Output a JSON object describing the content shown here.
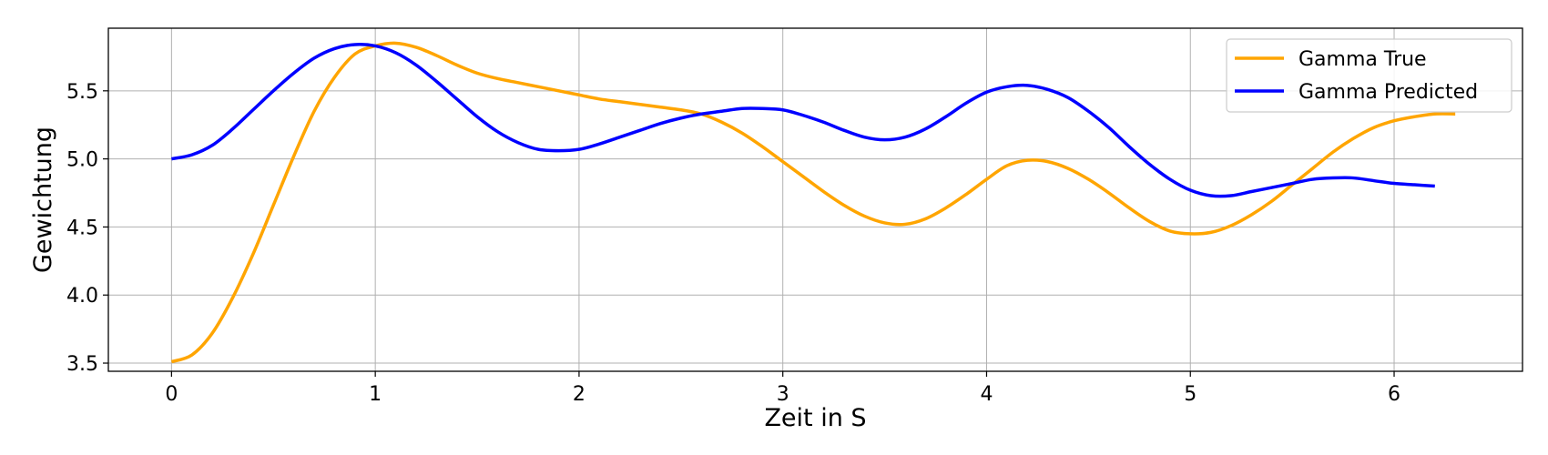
{
  "chart_data": {
    "type": "line",
    "title": "",
    "xlabel": "Zeit in S",
    "ylabel": "Gewichtung",
    "xlim": [
      -0.31,
      6.63
    ],
    "ylim": [
      3.44,
      5.96
    ],
    "xticks": [
      0,
      1,
      2,
      3,
      4,
      5,
      6
    ],
    "yticks": [
      3.5,
      4.0,
      4.5,
      5.0,
      5.5
    ],
    "xtick_labels": [
      "0",
      "1",
      "2",
      "3",
      "4",
      "5",
      "6"
    ],
    "ytick_labels": [
      "3.5",
      "4.0",
      "4.5",
      "5.0",
      "5.5"
    ],
    "grid": true,
    "legend_position": "top-right",
    "series": [
      {
        "name": "Gamma True",
        "color": "#FFA500",
        "points": [
          [
            0,
            3.51
          ],
          [
            0.1,
            3.56
          ],
          [
            0.2,
            3.72
          ],
          [
            0.3,
            3.98
          ],
          [
            0.4,
            4.3
          ],
          [
            0.5,
            4.66
          ],
          [
            0.6,
            5.02
          ],
          [
            0.7,
            5.35
          ],
          [
            0.8,
            5.6
          ],
          [
            0.9,
            5.77
          ],
          [
            1.0,
            5.83
          ],
          [
            1.1,
            5.85
          ],
          [
            1.2,
            5.82
          ],
          [
            1.3,
            5.76
          ],
          [
            1.4,
            5.69
          ],
          [
            1.5,
            5.63
          ],
          [
            1.6,
            5.59
          ],
          [
            1.7,
            5.56
          ],
          [
            1.8,
            5.53
          ],
          [
            1.9,
            5.5
          ],
          [
            2.0,
            5.47
          ],
          [
            2.1,
            5.44
          ],
          [
            2.2,
            5.42
          ],
          [
            2.3,
            5.4
          ],
          [
            2.4,
            5.38
          ],
          [
            2.5,
            5.36
          ],
          [
            2.6,
            5.33
          ],
          [
            2.7,
            5.27
          ],
          [
            2.8,
            5.19
          ],
          [
            2.9,
            5.09
          ],
          [
            3.0,
            4.98
          ],
          [
            3.1,
            4.87
          ],
          [
            3.2,
            4.76
          ],
          [
            3.3,
            4.66
          ],
          [
            3.4,
            4.58
          ],
          [
            3.5,
            4.53
          ],
          [
            3.6,
            4.52
          ],
          [
            3.7,
            4.56
          ],
          [
            3.8,
            4.64
          ],
          [
            3.9,
            4.74
          ],
          [
            4.0,
            4.85
          ],
          [
            4.1,
            4.95
          ],
          [
            4.2,
            4.99
          ],
          [
            4.3,
            4.98
          ],
          [
            4.4,
            4.93
          ],
          [
            4.5,
            4.85
          ],
          [
            4.6,
            4.75
          ],
          [
            4.7,
            4.64
          ],
          [
            4.8,
            4.54
          ],
          [
            4.9,
            4.47
          ],
          [
            5.0,
            4.45
          ],
          [
            5.1,
            4.46
          ],
          [
            5.2,
            4.51
          ],
          [
            5.3,
            4.59
          ],
          [
            5.4,
            4.69
          ],
          [
            5.5,
            4.81
          ],
          [
            5.6,
            4.93
          ],
          [
            5.7,
            5.05
          ],
          [
            5.8,
            5.15
          ],
          [
            5.9,
            5.23
          ],
          [
            6.0,
            5.28
          ],
          [
            6.1,
            5.31
          ],
          [
            6.2,
            5.33
          ],
          [
            6.3,
            5.33
          ]
        ]
      },
      {
        "name": "Gamma Predicted",
        "color": "#0000FF",
        "points": [
          [
            0,
            5.0
          ],
          [
            0.1,
            5.03
          ],
          [
            0.2,
            5.1
          ],
          [
            0.3,
            5.22
          ],
          [
            0.4,
            5.36
          ],
          [
            0.5,
            5.5
          ],
          [
            0.6,
            5.63
          ],
          [
            0.7,
            5.74
          ],
          [
            0.8,
            5.81
          ],
          [
            0.9,
            5.84
          ],
          [
            1.0,
            5.83
          ],
          [
            1.1,
            5.78
          ],
          [
            1.2,
            5.69
          ],
          [
            1.3,
            5.57
          ],
          [
            1.4,
            5.44
          ],
          [
            1.5,
            5.31
          ],
          [
            1.6,
            5.2
          ],
          [
            1.7,
            5.12
          ],
          [
            1.8,
            5.07
          ],
          [
            1.9,
            5.06
          ],
          [
            2.0,
            5.07
          ],
          [
            2.1,
            5.11
          ],
          [
            2.2,
            5.16
          ],
          [
            2.3,
            5.21
          ],
          [
            2.4,
            5.26
          ],
          [
            2.5,
            5.3
          ],
          [
            2.6,
            5.33
          ],
          [
            2.7,
            5.35
          ],
          [
            2.8,
            5.37
          ],
          [
            2.9,
            5.37
          ],
          [
            3.0,
            5.36
          ],
          [
            3.1,
            5.32
          ],
          [
            3.2,
            5.27
          ],
          [
            3.3,
            5.21
          ],
          [
            3.4,
            5.16
          ],
          [
            3.5,
            5.14
          ],
          [
            3.6,
            5.16
          ],
          [
            3.7,
            5.22
          ],
          [
            3.8,
            5.31
          ],
          [
            3.9,
            5.41
          ],
          [
            4.0,
            5.49
          ],
          [
            4.1,
            5.53
          ],
          [
            4.2,
            5.54
          ],
          [
            4.3,
            5.51
          ],
          [
            4.4,
            5.45
          ],
          [
            4.5,
            5.35
          ],
          [
            4.6,
            5.23
          ],
          [
            4.7,
            5.09
          ],
          [
            4.8,
            4.96
          ],
          [
            4.9,
            4.85
          ],
          [
            5.0,
            4.77
          ],
          [
            5.1,
            4.73
          ],
          [
            5.2,
            4.73
          ],
          [
            5.3,
            4.76
          ],
          [
            5.4,
            4.79
          ],
          [
            5.5,
            4.82
          ],
          [
            5.6,
            4.85
          ],
          [
            5.7,
            4.86
          ],
          [
            5.8,
            4.86
          ],
          [
            5.9,
            4.84
          ],
          [
            6.0,
            4.82
          ],
          [
            6.1,
            4.81
          ],
          [
            6.2,
            4.8
          ]
        ]
      }
    ]
  }
}
